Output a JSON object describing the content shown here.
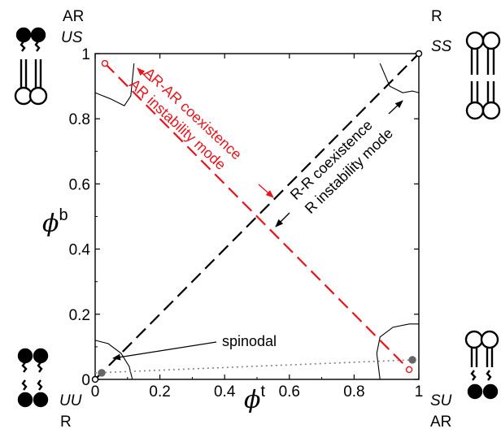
{
  "chart_data": {
    "type": "line",
    "title": "",
    "xlabel": {
      "symbol": "ϕ",
      "superscript": "t"
    },
    "ylabel": {
      "symbol": "ϕ",
      "superscript": "b"
    },
    "xlim": [
      0,
      1
    ],
    "ylim": [
      0,
      1
    ],
    "xticks": [
      "0",
      "0.2",
      "0.4",
      "0.6",
      "0.8",
      "1"
    ],
    "yticks": [
      "0",
      "0.2",
      "0.4",
      "0.6",
      "0.8",
      "1"
    ],
    "grid": false,
    "series": [
      {
        "name": "R-R coexistence",
        "style": "dashed",
        "color": "#000000",
        "x": [
          0.0,
          1.0
        ],
        "y": [
          0.0,
          1.0
        ]
      },
      {
        "name": "AR-AR coexistence",
        "style": "dashed",
        "color": "#e8141c",
        "x": [
          0.03,
          0.97
        ],
        "y": [
          0.97,
          0.03
        ]
      },
      {
        "name": "",
        "style": "dotted",
        "color": "#808080",
        "x": [
          0.0,
          0.98
        ],
        "y": [
          0.02,
          0.06
        ]
      },
      {
        "name": "spinodal",
        "style": "solid",
        "color": "#000000",
        "curves": [
          {
            "x": [
              0.0,
              0.04,
              0.08,
              0.105,
              0.115
            ],
            "y": [
              0.12,
              0.11,
              0.08,
              0.04,
              0.0
            ]
          },
          {
            "x": [
              0.0,
              0.05,
              0.09,
              0.11,
              0.12
            ],
            "y": [
              0.88,
              0.86,
              0.84,
              0.87,
              0.97
            ]
          },
          {
            "x": [
              0.88,
              0.91,
              0.95,
              0.98,
              1.0
            ],
            "y": [
              0.97,
              0.9,
              0.88,
              0.885,
              0.88
            ]
          },
          {
            "x": [
              0.88,
              0.87,
              0.88,
              0.92,
              0.97,
              1.0
            ],
            "y": [
              0.0,
              0.08,
              0.13,
              0.16,
              0.17,
              0.17
            ]
          }
        ]
      }
    ],
    "markers": [
      {
        "x": 0.0,
        "y": 0.0,
        "color": "#000000",
        "filled": false
      },
      {
        "x": 1.0,
        "y": 1.0,
        "color": "#000000",
        "filled": false
      },
      {
        "x": 0.03,
        "y": 0.97,
        "color": "#e8141c",
        "filled": false
      },
      {
        "x": 0.97,
        "y": 0.03,
        "color": "#e8141c",
        "filled": false
      },
      {
        "x": 0.02,
        "y": 0.02,
        "color": "#666666",
        "filled": true
      },
      {
        "x": 0.98,
        "y": 0.06,
        "color": "#666666",
        "filled": true
      }
    ],
    "annotations": [
      {
        "text": "AR-AR coexistence",
        "color": "#e8141c"
      },
      {
        "text": "AR instability mode",
        "color": "#e8141c"
      },
      {
        "text": "R-R coexistence",
        "color": "#000000"
      },
      {
        "text": "R instability mode",
        "color": "#000000"
      },
      {
        "text": "spinodal",
        "color": "#000000"
      }
    ],
    "corners": {
      "top_left": {
        "top": "AR",
        "bottom": "US"
      },
      "top_right": {
        "top": "R",
        "bottom": "SS"
      },
      "bottom_left": {
        "top": "UU",
        "bottom": "R"
      },
      "bottom_right": {
        "top": "SU",
        "bottom": "AR"
      }
    }
  }
}
